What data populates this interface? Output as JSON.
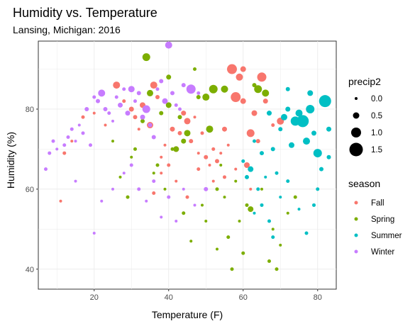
{
  "chart_data": {
    "type": "scatter",
    "title": "Humidity vs. Temperature",
    "subtitle": "Lansing, Michigan: 2016",
    "xlabel": "Temperature (F)",
    "ylabel": "Humidity (%)",
    "xlim": [
      5,
      85
    ],
    "ylim": [
      35,
      97
    ],
    "x_ticks": [
      20,
      40,
      60,
      80
    ],
    "y_ticks": [
      40,
      60,
      80
    ],
    "grid": true,
    "size_legend": {
      "title": "precip2",
      "entries": [
        {
          "label": "0.0",
          "value": 0.0
        },
        {
          "label": "0.5",
          "value": 0.5
        },
        {
          "label": "1.0",
          "value": 1.0
        },
        {
          "label": "1.5",
          "value": 1.5
        }
      ]
    },
    "color_legend": {
      "title": "season",
      "entries": [
        {
          "label": "Fall",
          "color": "#F8766D"
        },
        {
          "label": "Spring",
          "color": "#7CAE00"
        },
        {
          "label": "Summer",
          "color": "#00BFC4"
        },
        {
          "label": "Winter",
          "color": "#C77CFF"
        }
      ]
    },
    "series": [
      {
        "name": "Fall",
        "color": "#F8766D",
        "points": [
          [
            11,
            57,
            0
          ],
          [
            12,
            69,
            0.1
          ],
          [
            14,
            72,
            0
          ],
          [
            17,
            78,
            0.1
          ],
          [
            20,
            79,
            0
          ],
          [
            23,
            76,
            0
          ],
          [
            26,
            86,
            0.6
          ],
          [
            28,
            82,
            0.1
          ],
          [
            30,
            80,
            0.3
          ],
          [
            31,
            78,
            0.2
          ],
          [
            32,
            75,
            0
          ],
          [
            33,
            81,
            0.4
          ],
          [
            35,
            76,
            0.5
          ],
          [
            36,
            86,
            0.6
          ],
          [
            37,
            83,
            0.2
          ],
          [
            38,
            68,
            0
          ],
          [
            39,
            71,
            0
          ],
          [
            40,
            66,
            0.1
          ],
          [
            41,
            75,
            0.3
          ],
          [
            42,
            70,
            0.4
          ],
          [
            43,
            74,
            0.2
          ],
          [
            44,
            79,
            0.3
          ],
          [
            45,
            77,
            0.5
          ],
          [
            46,
            72,
            0.2
          ],
          [
            47,
            78,
            0
          ],
          [
            48,
            69,
            0
          ],
          [
            49,
            74,
            0.1
          ],
          [
            50,
            68,
            0.2
          ],
          [
            51,
            66,
            0
          ],
          [
            52,
            70,
            0.1
          ],
          [
            53,
            67,
            0.2
          ],
          [
            54,
            69,
            0
          ],
          [
            55,
            75,
            0.3
          ],
          [
            56,
            71,
            0
          ],
          [
            57,
            90,
            1.0
          ],
          [
            58,
            83,
            1.0
          ],
          [
            59,
            88,
            0.6
          ],
          [
            60,
            90,
            0.4
          ],
          [
            60,
            82,
            0.4
          ],
          [
            61,
            66,
            0.4
          ],
          [
            62,
            74,
            0.7
          ],
          [
            63,
            79,
            0.4
          ],
          [
            64,
            72,
            0.2
          ],
          [
            65,
            88,
            0.9
          ],
          [
            66,
            82,
            0.3
          ],
          [
            68,
            76,
            0.1
          ],
          [
            70,
            77,
            0.6
          ],
          [
            36,
            59,
            0.1
          ],
          [
            38,
            64,
            0
          ],
          [
            42,
            62,
            0
          ],
          [
            45,
            58,
            0.1
          ],
          [
            48,
            65,
            0.1
          ],
          [
            52,
            62,
            0
          ],
          [
            55,
            63,
            0.1
          ],
          [
            58,
            65,
            0
          ],
          [
            62,
            60,
            0
          ]
        ]
      },
      {
        "name": "Spring",
        "color": "#7CAE00",
        "points": [
          [
            25,
            72,
            0
          ],
          [
            27,
            63,
            0
          ],
          [
            29,
            58,
            0.1
          ],
          [
            30,
            68,
            0
          ],
          [
            31,
            70,
            0.1
          ],
          [
            32,
            60,
            0
          ],
          [
            33,
            77,
            0.2
          ],
          [
            34,
            93,
            0.7
          ],
          [
            35,
            84,
            0.5
          ],
          [
            36,
            64,
            0
          ],
          [
            37,
            66,
            0.1
          ],
          [
            38,
            79,
            0.2
          ],
          [
            39,
            60,
            0
          ],
          [
            40,
            81,
            0.4
          ],
          [
            40,
            88,
            0.3
          ],
          [
            41,
            70,
            0.1
          ],
          [
            42,
            70,
            0.4
          ],
          [
            43,
            78,
            0.2
          ],
          [
            44,
            72,
            0.3
          ],
          [
            44,
            54,
            0.1
          ],
          [
            45,
            74,
            0.5
          ],
          [
            46,
            85,
            0.2
          ],
          [
            47,
            90,
            0.1
          ],
          [
            48,
            83,
            0.2
          ],
          [
            49,
            56,
            0
          ],
          [
            50,
            83,
            0.6
          ],
          [
            51,
            75,
            0.6
          ],
          [
            52,
            85,
            0.8
          ],
          [
            53,
            60,
            0.1
          ],
          [
            54,
            66,
            0
          ],
          [
            55,
            85,
            0.6
          ],
          [
            56,
            48,
            0.1
          ],
          [
            57,
            40,
            0.1
          ],
          [
            58,
            62,
            0
          ],
          [
            59,
            52,
            0
          ],
          [
            60,
            44,
            0.1
          ],
          [
            61,
            56,
            0.1
          ],
          [
            62,
            55,
            0.4
          ],
          [
            63,
            86,
            0.2
          ],
          [
            64,
            85,
            0.7
          ],
          [
            65,
            60,
            0
          ],
          [
            66,
            84,
            0.6
          ],
          [
            67,
            42,
            0.1
          ],
          [
            68,
            50,
            0
          ],
          [
            69,
            40,
            0.1
          ],
          [
            70,
            46,
            0
          ],
          [
            72,
            54,
            0
          ],
          [
            74,
            58,
            0.1
          ],
          [
            46,
            47,
            0
          ],
          [
            50,
            52,
            0
          ],
          [
            53,
            45,
            0
          ],
          [
            55,
            58,
            0
          ]
        ]
      },
      {
        "name": "Summer",
        "color": "#00BFC4",
        "points": [
          [
            60,
            67,
            0.1
          ],
          [
            61,
            63,
            0.2
          ],
          [
            62,
            65,
            0.4
          ],
          [
            63,
            72,
            0.1
          ],
          [
            64,
            60,
            0.1
          ],
          [
            65,
            69,
            0.2
          ],
          [
            66,
            63,
            0
          ],
          [
            67,
            79,
            0.3
          ],
          [
            68,
            70,
            0.2
          ],
          [
            69,
            64,
            0.1
          ],
          [
            70,
            75,
            0.2
          ],
          [
            71,
            78,
            0.5
          ],
          [
            72,
            80,
            0.3
          ],
          [
            73,
            71,
            0.4
          ],
          [
            74,
            77,
            0.9
          ],
          [
            75,
            79,
            0.6
          ],
          [
            76,
            77,
            1.3
          ],
          [
            77,
            72,
            0.6
          ],
          [
            78,
            80,
            0.8
          ],
          [
            79,
            74,
            0.3
          ],
          [
            80,
            69,
            0.8
          ],
          [
            81,
            65,
            0.2
          ],
          [
            82,
            82,
            1.3
          ],
          [
            78,
            84,
            0.4
          ],
          [
            72,
            85,
            0.2
          ],
          [
            65,
            56,
            0.1
          ],
          [
            67,
            52,
            0.1
          ],
          [
            70,
            58,
            0
          ],
          [
            72,
            62,
            0.1
          ],
          [
            75,
            55,
            0
          ],
          [
            77,
            49,
            0.1
          ],
          [
            79,
            56,
            0.1
          ],
          [
            80,
            60,
            0.1
          ],
          [
            83,
            68,
            0.2
          ],
          [
            83,
            75,
            0.3
          ],
          [
            68,
            48,
            0.1
          ],
          [
            63,
            54,
            0
          ]
        ]
      },
      {
        "name": "Winter",
        "color": "#C77CFF",
        "points": [
          [
            7,
            65,
            0.1
          ],
          [
            8,
            69,
            0.1
          ],
          [
            9,
            72,
            0.1
          ],
          [
            10,
            70,
            0
          ],
          [
            12,
            71,
            0.1
          ],
          [
            13,
            73,
            0.1
          ],
          [
            14,
            75,
            0.1
          ],
          [
            15,
            72,
            0
          ],
          [
            16,
            76,
            0
          ],
          [
            17,
            74,
            0.1
          ],
          [
            18,
            80,
            0.2
          ],
          [
            19,
            71,
            0.1
          ],
          [
            20,
            83,
            0.1
          ],
          [
            21,
            82,
            0.2
          ],
          [
            22,
            84,
            0.6
          ],
          [
            23,
            80,
            0.2
          ],
          [
            24,
            79,
            0.1
          ],
          [
            25,
            77,
            0
          ],
          [
            26,
            83,
            0.1
          ],
          [
            27,
            81,
            0.3
          ],
          [
            28,
            85,
            0.1
          ],
          [
            29,
            79,
            0.3
          ],
          [
            30,
            85,
            0.5
          ],
          [
            31,
            82,
            0.1
          ],
          [
            32,
            84,
            0.2
          ],
          [
            33,
            78,
            0.3
          ],
          [
            34,
            80,
            0.7
          ],
          [
            35,
            76,
            0.2
          ],
          [
            36,
            73,
            0.2
          ],
          [
            37,
            85,
            0.1
          ],
          [
            38,
            87,
            0.2
          ],
          [
            39,
            82,
            0.4
          ],
          [
            40,
            96,
            0.6
          ],
          [
            41,
            84,
            0.2
          ],
          [
            42,
            81,
            0.1
          ],
          [
            43,
            80,
            0.1
          ],
          [
            44,
            86,
            0.2
          ],
          [
            46,
            85,
            0.9
          ],
          [
            48,
            84,
            0.1
          ],
          [
            50,
            60,
            0.2
          ],
          [
            20,
            49,
            0
          ],
          [
            22,
            57,
            0
          ],
          [
            25,
            60,
            0
          ],
          [
            28,
            64,
            0
          ],
          [
            30,
            66,
            0.1
          ],
          [
            32,
            60,
            0.1
          ],
          [
            34,
            57,
            0
          ],
          [
            36,
            62,
            0.1
          ],
          [
            38,
            53,
            0
          ],
          [
            40,
            58,
            0.1
          ],
          [
            42,
            52,
            0
          ],
          [
            44,
            60,
            0
          ],
          [
            47,
            56,
            0
          ],
          [
            15,
            62,
            0
          ]
        ]
      }
    ]
  }
}
